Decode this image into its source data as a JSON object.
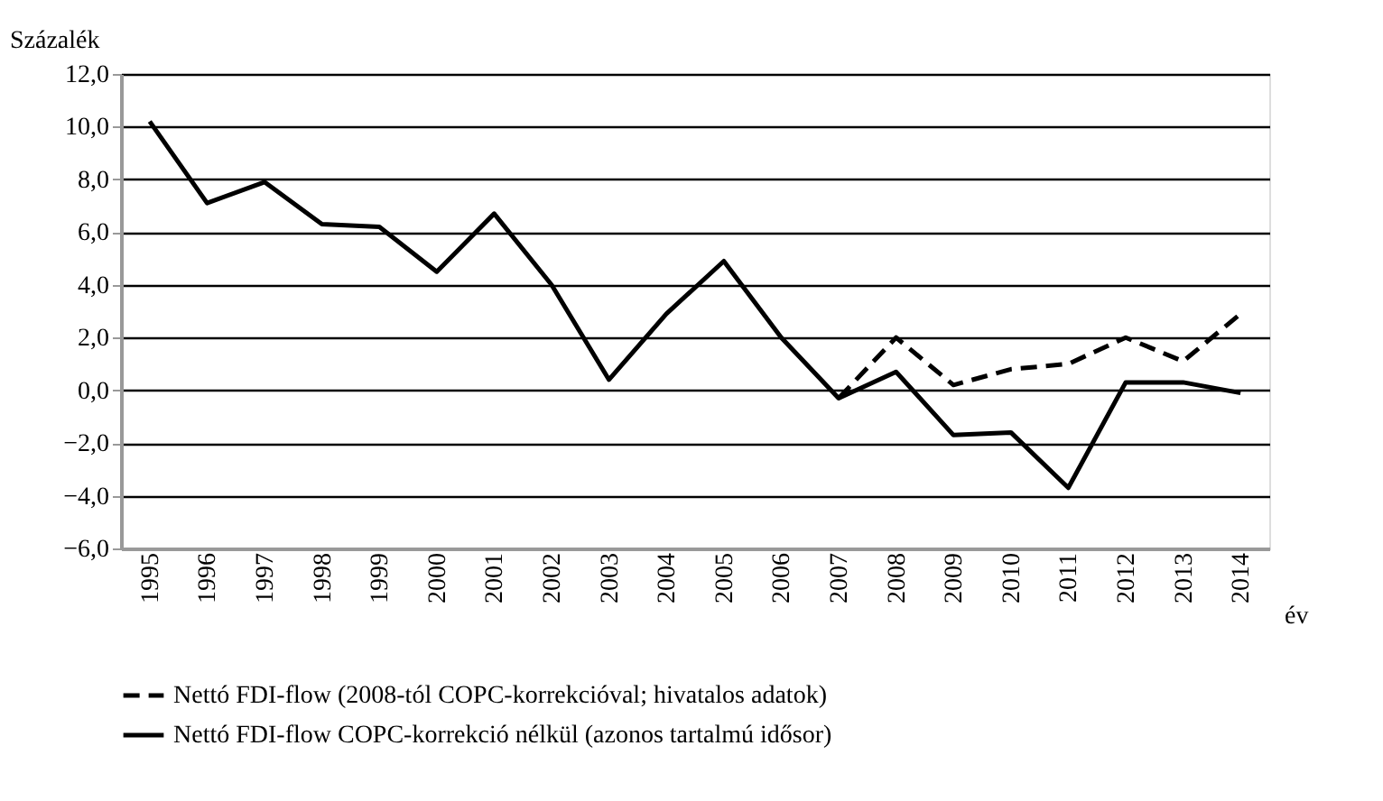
{
  "chart_data": {
    "type": "line",
    "ylabel": "Százalék",
    "xlabel": "év",
    "categories": [
      "1995",
      "1996",
      "1997",
      "1998",
      "1999",
      "2000",
      "2001",
      "2002",
      "2003",
      "2004",
      "2005",
      "2006",
      "2007",
      "2008",
      "2009",
      "2010",
      "2011",
      "2012",
      "2013",
      "2014"
    ],
    "series": [
      {
        "name": "Nettó FDI-flow  (2008-tól COPC-korrekcióval; hivatalos adatok)",
        "color": "#000000",
        "line_style": "dashed",
        "values": [
          null,
          null,
          null,
          null,
          null,
          null,
          null,
          null,
          null,
          null,
          null,
          null,
          -0.3,
          2.0,
          0.2,
          0.8,
          1.0,
          2.0,
          1.1,
          2.9
        ]
      },
      {
        "name": "Nettó FDI-flow COPC-korrekció nélkül (azonos tartalmú idősor)",
        "color": "#000000",
        "line_style": "solid",
        "values": [
          10.2,
          7.1,
          7.9,
          6.3,
          6.2,
          4.5,
          6.7,
          4.0,
          0.4,
          2.9,
          4.9,
          2.0,
          -0.3,
          0.7,
          -1.7,
          -1.6,
          -3.7,
          0.3,
          0.3,
          -0.1
        ]
      }
    ],
    "ylim": [
      -6,
      12
    ],
    "yticks": [
      {
        "value": -6,
        "label": "−6,0"
      },
      {
        "value": -4,
        "label": "−4,0"
      },
      {
        "value": -2,
        "label": "−2,0"
      },
      {
        "value": 0,
        "label": "0,0"
      },
      {
        "value": 2,
        "label": "2,0"
      },
      {
        "value": 4,
        "label": "4,0"
      },
      {
        "value": 6,
        "label": "6,0"
      },
      {
        "value": 8,
        "label": "8,0"
      },
      {
        "value": 10,
        "label": "10,0"
      },
      {
        "value": 12,
        "label": "12,0"
      }
    ],
    "grid": "y",
    "legend": "bottom",
    "marker": "none"
  }
}
